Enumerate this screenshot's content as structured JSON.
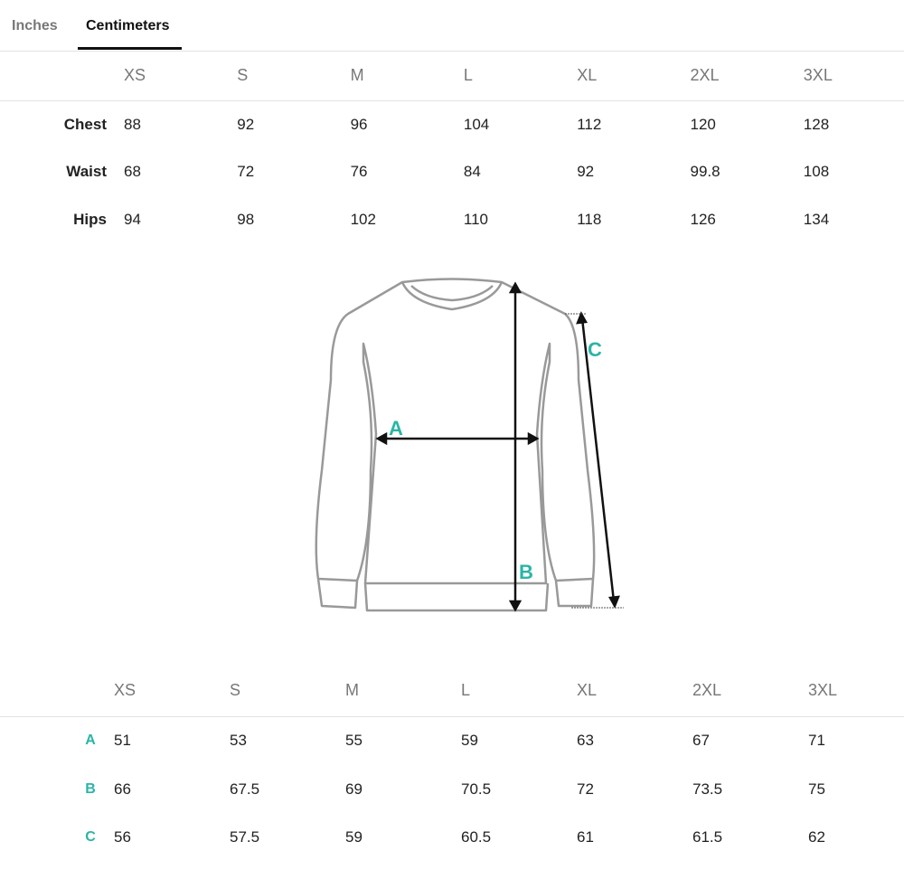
{
  "tabs": [
    {
      "label": "Inches",
      "active": false
    },
    {
      "label": "Centimeters",
      "active": true
    }
  ],
  "body_table": {
    "sizes": [
      "XS",
      "S",
      "M",
      "L",
      "XL",
      "2XL",
      "3XL"
    ],
    "rows": [
      {
        "label": "Chest",
        "values": [
          "88",
          "92",
          "96",
          "104",
          "112",
          "120",
          "128"
        ]
      },
      {
        "label": "Waist",
        "values": [
          "68",
          "72",
          "76",
          "84",
          "92",
          "99.8",
          "108"
        ]
      },
      {
        "label": "Hips",
        "values": [
          "94",
          "98",
          "102",
          "110",
          "118",
          "126",
          "134"
        ]
      }
    ]
  },
  "diagram": {
    "labels": [
      "A",
      "B",
      "C"
    ],
    "accent": "#2bb5a6"
  },
  "garment_table": {
    "sizes": [
      "XS",
      "S",
      "M",
      "L",
      "XL",
      "2XL",
      "3XL"
    ],
    "rows": [
      {
        "label": "A",
        "values": [
          "51",
          "53",
          "55",
          "59",
          "63",
          "67",
          "71"
        ]
      },
      {
        "label": "B",
        "values": [
          "66",
          "67.5",
          "69",
          "70.5",
          "72",
          "73.5",
          "75"
        ]
      },
      {
        "label": "C",
        "values": [
          "56",
          "57.5",
          "59",
          "60.5",
          "61",
          "61.5",
          "62"
        ]
      }
    ]
  }
}
